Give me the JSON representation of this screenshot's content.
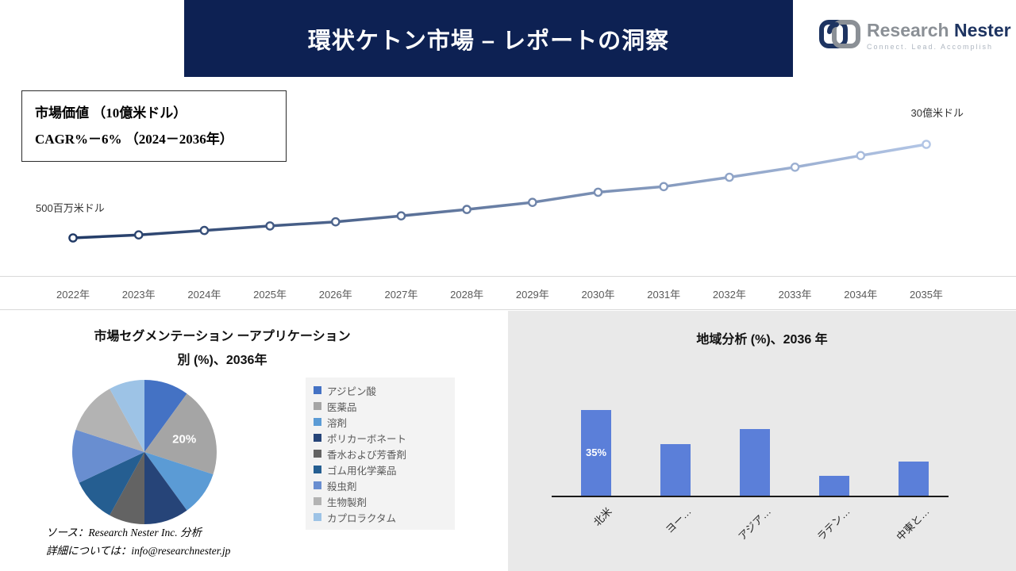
{
  "header": {
    "title": "環状ケトン市場 – レポートの洞察"
  },
  "logo": {
    "name_primary": "Research",
    "name_secondary": "Nester",
    "tagline": "Connect. Lead. Accomplish"
  },
  "info_box": {
    "line1": "市場価値 （10億米ドル）",
    "line2": "CAGR%－6% （2024－2036年）"
  },
  "line_annotations": {
    "start_label": "500百万米ドル",
    "end_label": "30億米ドル"
  },
  "segmentation": {
    "title_line1": "市場セグメンテーション ーアプリケーション",
    "title_line2": "別 (%)、2036年"
  },
  "region": {
    "title": "地域分析 (%)、2036 年"
  },
  "source": {
    "line1": "ソース：Research Nester Inc. 分析",
    "line2": "詳細については：info@researchnester.jp"
  },
  "chart_data": [
    {
      "type": "line",
      "title": "市場価値（百万米ドル）2022－2035",
      "x": [
        "2022年",
        "2023年",
        "2024年",
        "2025年",
        "2026年",
        "2027年",
        "2028年",
        "2029年",
        "2030年",
        "2031年",
        "2032年",
        "2033年",
        "2034年",
        "2035年"
      ],
      "values": [
        500,
        580,
        700,
        820,
        930,
        1090,
        1260,
        1450,
        1720,
        1870,
        2120,
        2390,
        2700,
        3000
      ],
      "unit": "百万米ドル",
      "ylim": [
        400,
        3100
      ],
      "start_annotation": "500百万米ドル",
      "end_annotation": "30億米ドル",
      "line_gradient": [
        "#1f3864",
        "#b4c7e7"
      ],
      "marker": "circle",
      "grid": false
    },
    {
      "type": "pie",
      "title": "市場セグメンテーション ーアプリケーション別 (%)、2036年",
      "legend_position": "right",
      "segments": [
        {
          "label": "アジピン酸",
          "value": 10,
          "color": "#4472C4"
        },
        {
          "label": "医薬品",
          "value": 20,
          "color": "#A5A5A5",
          "datalabel": "20%"
        },
        {
          "label": "溶剤",
          "value": 10,
          "color": "#5B9BD5"
        },
        {
          "label": "ポリカーボネート",
          "value": 10,
          "color": "#264478"
        },
        {
          "label": "香水および芳香剤",
          "value": 8,
          "color": "#636363"
        },
        {
          "label": "ゴム用化学薬品",
          "value": 10,
          "color": "#255E91"
        },
        {
          "label": "殺虫剤",
          "value": 12,
          "color": "#698ED0"
        },
        {
          "label": "生物製剤",
          "value": 12,
          "color": "#B3B3B3"
        },
        {
          "label": "カプロラクタム",
          "value": 8,
          "color": "#9DC3E6"
        }
      ]
    },
    {
      "type": "bar",
      "title": "地域分析 (%)、2036 年",
      "categories": [
        "北米",
        "ヨー…",
        "アジア…",
        "ラテン…",
        "中東と…"
      ],
      "values": [
        35,
        21,
        27,
        8,
        14
      ],
      "datalabels": [
        "35%",
        "",
        "",
        "",
        ""
      ],
      "bar_color": "#5B7FD9",
      "ylim": [
        0,
        40
      ],
      "grid": false
    }
  ]
}
